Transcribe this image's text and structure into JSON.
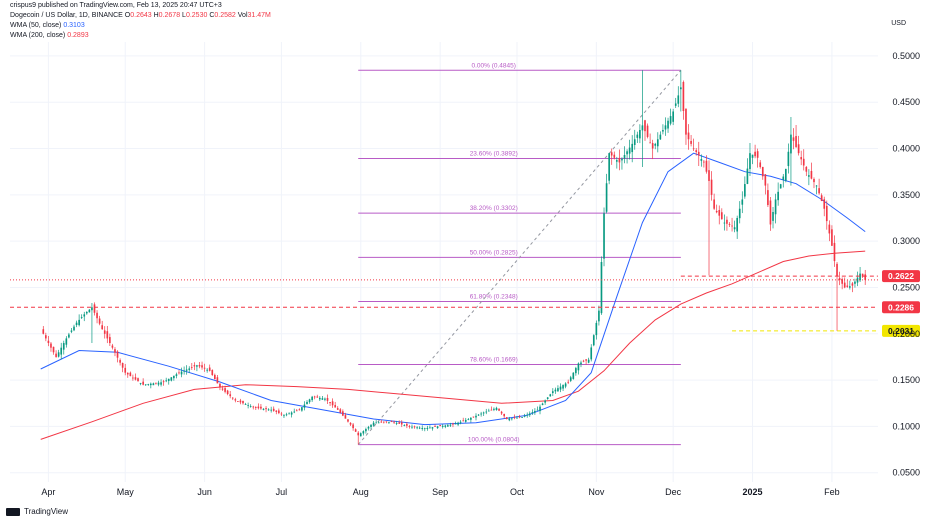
{
  "publisher_line": "crispus9 published on TradingView.com, Feb 13, 2025 20:47 UTC+3",
  "symbol": {
    "name": "Dogecoin / US Dollar, 1D, BINANCE",
    "open_label": "O",
    "open": "0.2643",
    "high_label": "H",
    "high": "0.2678",
    "low_label": "L",
    "low": "0.2530",
    "close_label": "C",
    "close": "0.2582",
    "vol_label": "Vol",
    "vol": "31.47M"
  },
  "indicators": [
    {
      "label": "WMA (50, close)",
      "value": "0.3103",
      "color": "#2962ff"
    },
    {
      "label": "WMA (200, close)",
      "value": "0.2893",
      "color": "#f23645"
    }
  ],
  "currency": "USD",
  "footer_brand": "TradingView",
  "colors": {
    "up": "#089981",
    "down": "#f23645",
    "wma50": "#2962ff",
    "wma200": "#f23645",
    "fib": "#b85bc6",
    "grid": "#f0f3fa"
  },
  "chart_data": {
    "type": "candlestick",
    "title": "Dogecoin / US Dollar, 1D, BINANCE",
    "ylim": [
      0.04,
      0.515
    ],
    "y_ticks": [
      "0.0500",
      "0.1000",
      "0.1500",
      "0.2000",
      "0.2500",
      "0.3000",
      "0.3500",
      "0.4000",
      "0.4500",
      "0.5000"
    ],
    "x_ticks": [
      "Apr",
      "May",
      "Jun",
      "Jul",
      "Aug",
      "Sep",
      "Oct",
      "Nov",
      "Dec",
      "2025",
      "Feb"
    ],
    "x_tick_day": [
      3,
      33,
      64,
      94,
      125,
      156,
      186,
      217,
      247,
      278,
      309
    ],
    "x_range_days": [
      -12,
      327
    ],
    "key_points": [
      [
        0,
        0.205
      ],
      [
        6,
        0.175
      ],
      [
        10,
        0.195
      ],
      [
        14,
        0.212
      ],
      [
        17,
        0.221
      ],
      [
        20,
        0.2286
      ],
      [
        24,
        0.205
      ],
      [
        28,
        0.185
      ],
      [
        33,
        0.158
      ],
      [
        40,
        0.145
      ],
      [
        48,
        0.148
      ],
      [
        54,
        0.158
      ],
      [
        61,
        0.166
      ],
      [
        66,
        0.16
      ],
      [
        70,
        0.142
      ],
      [
        76,
        0.128
      ],
      [
        84,
        0.12
      ],
      [
        90,
        0.118
      ],
      [
        95,
        0.112
      ],
      [
        101,
        0.118
      ],
      [
        106,
        0.132
      ],
      [
        111,
        0.13
      ],
      [
        116,
        0.118
      ],
      [
        121,
        0.102
      ],
      [
        124,
        0.0904
      ],
      [
        130,
        0.104
      ],
      [
        137,
        0.105
      ],
      [
        144,
        0.1
      ],
      [
        150,
        0.098
      ],
      [
        155,
        0.1
      ],
      [
        161,
        0.102
      ],
      [
        167,
        0.108
      ],
      [
        173,
        0.115
      ],
      [
        178,
        0.12
      ],
      [
        182,
        0.108
      ],
      [
        188,
        0.11
      ],
      [
        194,
        0.118
      ],
      [
        200,
        0.138
      ],
      [
        206,
        0.148
      ],
      [
        210,
        0.168
      ],
      [
        214,
        0.172
      ],
      [
        218,
        0.225
      ],
      [
        220,
        0.33
      ],
      [
        222,
        0.395
      ],
      [
        226,
        0.385
      ],
      [
        231,
        0.405
      ],
      [
        235,
        0.425
      ],
      [
        239,
        0.4
      ],
      [
        243,
        0.42
      ],
      [
        247,
        0.44
      ],
      [
        250,
        0.466
      ],
      [
        252,
        0.415
      ],
      [
        255,
        0.4
      ],
      [
        259,
        0.385
      ],
      [
        261,
        0.365
      ],
      [
        263,
        0.335
      ],
      [
        267,
        0.32
      ],
      [
        271,
        0.315
      ],
      [
        274,
        0.345
      ],
      [
        277,
        0.395
      ],
      [
        280,
        0.39
      ],
      [
        283,
        0.36
      ],
      [
        285,
        0.318
      ],
      [
        287,
        0.345
      ],
      [
        291,
        0.378
      ],
      [
        293,
        0.415
      ],
      [
        296,
        0.395
      ],
      [
        299,
        0.375
      ],
      [
        303,
        0.36
      ],
      [
        306,
        0.335
      ],
      [
        309,
        0.295
      ],
      [
        311,
        0.262
      ],
      [
        314,
        0.25
      ],
      [
        317,
        0.252
      ],
      [
        320,
        0.265
      ],
      [
        322,
        0.2582
      ]
    ],
    "wicks": [
      {
        "day": 20,
        "low": 0.19,
        "high": 0.2286
      },
      {
        "day": 124,
        "low": 0.0804,
        "high": 0.095
      },
      {
        "day": 235,
        "low": 0.38,
        "high": 0.4845
      },
      {
        "day": 250,
        "low": 0.44,
        "high": 0.4845
      },
      {
        "day": 261,
        "low": 0.263,
        "high": 0.36
      },
      {
        "day": 293,
        "low": 0.36,
        "high": 0.434
      },
      {
        "day": 311,
        "low": 0.2031,
        "high": 0.268
      }
    ],
    "wma50": [
      [
        0,
        0.162
      ],
      [
        15,
        0.182
      ],
      [
        30,
        0.18
      ],
      [
        50,
        0.165
      ],
      [
        70,
        0.148
      ],
      [
        90,
        0.128
      ],
      [
        110,
        0.118
      ],
      [
        130,
        0.108
      ],
      [
        150,
        0.102
      ],
      [
        170,
        0.104
      ],
      [
        190,
        0.112
      ],
      [
        205,
        0.128
      ],
      [
        215,
        0.158
      ],
      [
        225,
        0.24
      ],
      [
        235,
        0.32
      ],
      [
        245,
        0.375
      ],
      [
        255,
        0.395
      ],
      [
        265,
        0.385
      ],
      [
        275,
        0.375
      ],
      [
        285,
        0.37
      ],
      [
        295,
        0.362
      ],
      [
        305,
        0.345
      ],
      [
        315,
        0.325
      ],
      [
        322,
        0.3103
      ]
    ],
    "wma200": [
      [
        0,
        0.086
      ],
      [
        20,
        0.105
      ],
      [
        40,
        0.125
      ],
      [
        60,
        0.14
      ],
      [
        80,
        0.145
      ],
      [
        100,
        0.143
      ],
      [
        120,
        0.14
      ],
      [
        140,
        0.135
      ],
      [
        160,
        0.13
      ],
      [
        180,
        0.125
      ],
      [
        200,
        0.128
      ],
      [
        210,
        0.138
      ],
      [
        220,
        0.16
      ],
      [
        230,
        0.19
      ],
      [
        240,
        0.215
      ],
      [
        250,
        0.232
      ],
      [
        260,
        0.244
      ],
      [
        270,
        0.254
      ],
      [
        280,
        0.266
      ],
      [
        290,
        0.278
      ],
      [
        300,
        0.284
      ],
      [
        310,
        0.287
      ],
      [
        322,
        0.2893
      ]
    ],
    "fib_start_day": 124,
    "fib_end_day": 250,
    "fib_levels": [
      {
        "label": "0.00% (0.4845)",
        "value": 0.4845
      },
      {
        "label": "23.60% (0.3892)",
        "value": 0.3892
      },
      {
        "label": "38.20% (0.3302)",
        "value": 0.3302
      },
      {
        "label": "50.00% (0.2825)",
        "value": 0.2825
      },
      {
        "label": "61.80% (0.2348)",
        "value": 0.2348
      },
      {
        "label": "78.60% (0.1669)",
        "value": 0.1669
      },
      {
        "label": "100.00% (0.0804)",
        "value": 0.0804
      }
    ],
    "trend_line": {
      "from": [
        124,
        0.0804
      ],
      "to": [
        250,
        0.4845
      ]
    },
    "price_lines": [
      {
        "value": 0.2622,
        "label": "0.2622",
        "style": "dashed",
        "color": "#f23645",
        "start_day": 250
      },
      {
        "value": 0.2286,
        "label": "0.2286",
        "style": "dashed",
        "color": "#f23645",
        "start_day": -12
      },
      {
        "value": 0.2031,
        "label": "0.2031",
        "style": "dashed",
        "color": "#f2e600",
        "start_day": 270
      },
      {
        "value": 0.2582,
        "label": "",
        "style": "dotted",
        "color": "#f23645",
        "start_day": -12
      }
    ]
  }
}
